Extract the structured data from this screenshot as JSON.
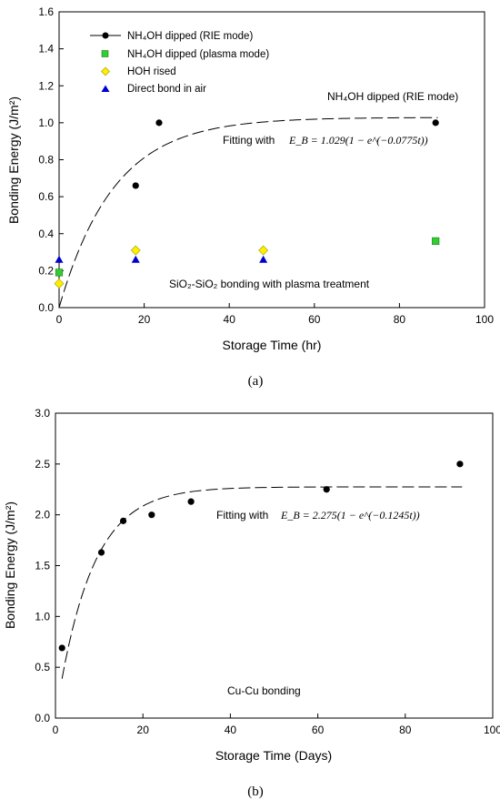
{
  "chart_data": [
    {
      "type": "scatter",
      "panel_label": "(a)",
      "xlabel": "Storage Time (hr)",
      "ylabel": "Bonding Energy (J/m²)",
      "xlim": [
        0,
        100
      ],
      "ylim": [
        0,
        1.6
      ],
      "xticks": [
        "0",
        "20",
        "40",
        "60",
        "80",
        "100"
      ],
      "yticks": [
        "0.0",
        "0.2",
        "0.4",
        "0.6",
        "0.8",
        "1.0",
        "1.2",
        "1.4",
        "1.6"
      ],
      "legend_position": "top-left",
      "series": [
        {
          "name": "NH₄OH dipped (RIE mode)",
          "marker": "circle",
          "color": "#000000",
          "x": [
            18,
            23.5,
            88.5
          ],
          "y": [
            0.66,
            1.0,
            1.0
          ]
        },
        {
          "name": "NH₄OH dipped (plasma mode)",
          "marker": "square",
          "color": "#33cc33",
          "x": [
            0,
            88.5
          ],
          "y": [
            0.19,
            0.36
          ]
        },
        {
          "name": "HOH rised",
          "marker": "diamond",
          "color": "#ffee00",
          "x": [
            0,
            18,
            48
          ],
          "y": [
            0.13,
            0.31,
            0.31
          ]
        },
        {
          "name": "Direct bond in air",
          "marker": "triangle",
          "color": "#0000cc",
          "x": [
            0,
            18,
            48
          ],
          "y": [
            0.26,
            0.26,
            0.26
          ]
        }
      ],
      "fit": {
        "A": 1.029,
        "k": 0.0775,
        "t_range": [
          0,
          89
        ],
        "style": "dashed"
      },
      "annotations": {
        "series_note": "NH₄OH dipped (RIE mode)",
        "fit_label": "Fitting with",
        "formula": "E_B = 1.029(1 − e^(−0.0775t))",
        "process_note": "SiO₂-SiO₂ bonding with plasma treatment"
      }
    },
    {
      "type": "scatter",
      "panel_label": "(b)",
      "xlabel": "Storage Time (Days)",
      "ylabel": "Bonding Energy (J/m²)",
      "xlim": [
        0,
        100
      ],
      "ylim": [
        0,
        3.0
      ],
      "xticks": [
        "0",
        "20",
        "40",
        "60",
        "80",
        "100"
      ],
      "yticks": [
        "0.0",
        "0.5",
        "1.0",
        "1.5",
        "2.0",
        "2.5",
        "3.0"
      ],
      "series": [
        {
          "marker": "circle",
          "color": "#000000",
          "x": [
            1.5,
            10.5,
            15.5,
            22,
            31,
            62,
            92.5
          ],
          "y": [
            0.69,
            1.63,
            1.94,
            2.0,
            2.13,
            2.25,
            2.5
          ]
        }
      ],
      "fit": {
        "A": 2.275,
        "k": 0.1245,
        "t_range": [
          1.5,
          93
        ],
        "style": "dashed"
      },
      "annotations": {
        "fit_label": "Fitting with",
        "formula": "E_B = 2.275(1 − e^(−0.1245t))",
        "process_note": "Cu-Cu bonding"
      }
    }
  ]
}
